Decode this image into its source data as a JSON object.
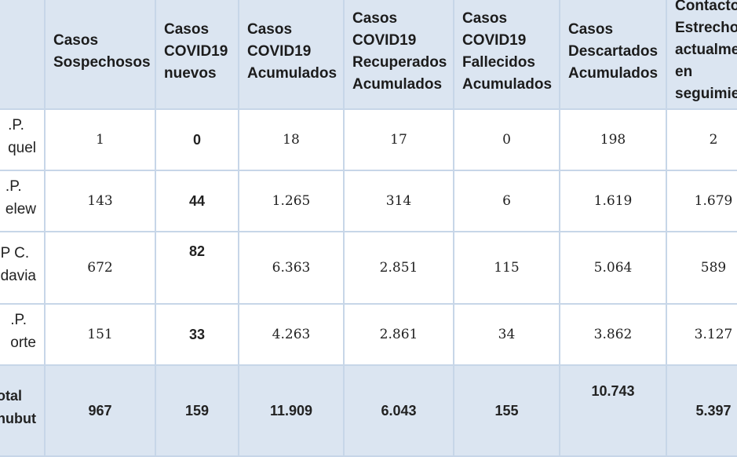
{
  "table": {
    "headers": [
      "",
      "Casos Sospechosos",
      "Casos COVID19 nuevos",
      "Casos COVID19 Acumulados",
      "Casos COVID19 Recuperados Acumulados",
      "Casos COVID19 Fallecidos Acumulados",
      "Casos Descartados Acumulados",
      "Contacto Estrecho actualme en seguimie"
    ],
    "header_lines": [
      [],
      [
        "Casos",
        "Sospechosos"
      ],
      [
        "Casos",
        "COVID19",
        "nuevos"
      ],
      [
        "Casos",
        "COVID19",
        "Acumulados"
      ],
      [
        "Casos",
        "COVID19",
        "Recuperados",
        "Acumulados"
      ],
      [
        "Casos",
        "COVID19",
        "Fallecidos",
        "Acumulados"
      ],
      [
        "Casos",
        "Descartados",
        "Acumulados"
      ],
      [
        "Contacto",
        "Estrecho",
        "actualme",
        "en",
        "seguimie"
      ]
    ],
    "rows": [
      {
        "label_lines": [
          ".P.",
          "quel"
        ],
        "cells": [
          "1",
          "0",
          "18",
          "17",
          "0",
          "198",
          "2"
        ]
      },
      {
        "label_lines": [
          ".P.",
          "elew"
        ],
        "cells": [
          "143",
          "44",
          "1.265",
          "314",
          "6",
          "1.619",
          "1.679"
        ]
      },
      {
        "label_lines": [
          "P C.",
          "davia"
        ],
        "cells": [
          "672",
          "82",
          "6.363",
          "2.851",
          "115",
          "5.064",
          "589"
        ]
      },
      {
        "label_lines": [
          ".P.",
          "orte"
        ],
        "cells": [
          "151",
          "33",
          "4.263",
          "2.861",
          "34",
          "3.862",
          "3.127"
        ]
      },
      {
        "label_lines": [
          "otal",
          "hubut"
        ],
        "cells": [
          "967",
          "159",
          "11.909",
          "6.043",
          "155",
          "10.743",
          "5.397"
        ]
      }
    ]
  },
  "colors": {
    "header_bg": "#dbe5f1",
    "border": "#c7d6e8",
    "body_bg": "#ffffff"
  }
}
